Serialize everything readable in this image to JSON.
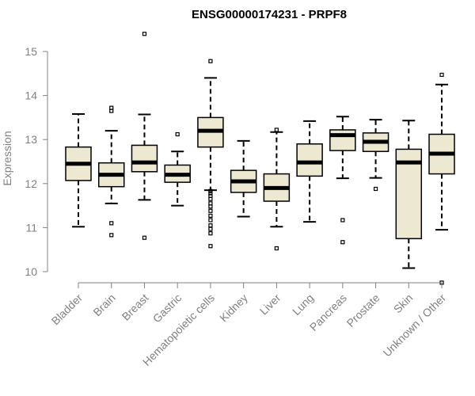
{
  "chart_data": {
    "type": "boxplot",
    "title": "ENSG00000174231 - PRPF8",
    "xlabel": "",
    "ylabel": "Expression",
    "ylim": [
      10,
      15
    ],
    "yticks": [
      10,
      11,
      12,
      13,
      14,
      15
    ],
    "grid": false,
    "box_fill": "#ede8d1",
    "categories": [
      "Bladder",
      "Brain",
      "Breast",
      "Gastric",
      "Hematopoietic cells",
      "Kidney",
      "Liver",
      "Lung",
      "Pancreas",
      "Prostate",
      "Skin",
      "Unknown / Other"
    ],
    "boxes": [
      {
        "category": "Bladder",
        "whisker_low": 11.02,
        "q1": 12.07,
        "median": 12.45,
        "q3": 12.83,
        "whisker_high": 13.58,
        "outliers": []
      },
      {
        "category": "Brain",
        "whisker_low": 11.55,
        "q1": 11.93,
        "median": 12.2,
        "q3": 12.47,
        "whisker_high": 13.2,
        "outliers": [
          13.65,
          13.72,
          11.1,
          10.83
        ]
      },
      {
        "category": "Breast",
        "whisker_low": 11.63,
        "q1": 12.27,
        "median": 12.48,
        "q3": 12.87,
        "whisker_high": 13.57,
        "outliers": [
          15.4,
          10.77
        ]
      },
      {
        "category": "Gastric",
        "whisker_low": 11.5,
        "q1": 12.03,
        "median": 12.2,
        "q3": 12.42,
        "whisker_high": 12.73,
        "outliers": [
          13.12
        ]
      },
      {
        "category": "Hematopoietic cells",
        "whisker_low": 11.85,
        "q1": 12.83,
        "median": 13.2,
        "q3": 13.5,
        "whisker_high": 14.4,
        "outliers": [
          14.78,
          11.83,
          11.78,
          11.72,
          11.65,
          11.55,
          11.48,
          11.38,
          11.27,
          11.17,
          11.05,
          10.97,
          10.87,
          10.58
        ]
      },
      {
        "category": "Kidney",
        "whisker_low": 11.25,
        "q1": 11.8,
        "median": 12.05,
        "q3": 12.3,
        "whisker_high": 12.97,
        "outliers": []
      },
      {
        "category": "Liver",
        "whisker_low": 11.02,
        "q1": 11.6,
        "median": 11.9,
        "q3": 12.22,
        "whisker_high": 13.17,
        "outliers": [
          13.22,
          10.53
        ]
      },
      {
        "category": "Lung",
        "whisker_low": 11.13,
        "q1": 12.17,
        "median": 12.48,
        "q3": 12.9,
        "whisker_high": 13.42,
        "outliers": []
      },
      {
        "category": "Pancreas",
        "whisker_low": 12.12,
        "q1": 12.75,
        "median": 13.1,
        "q3": 13.22,
        "whisker_high": 13.52,
        "outliers": [
          11.17,
          10.67
        ]
      },
      {
        "category": "Prostate",
        "whisker_low": 12.13,
        "q1": 12.73,
        "median": 12.95,
        "q3": 13.15,
        "whisker_high": 13.45,
        "outliers": [
          11.88
        ]
      },
      {
        "category": "Skin",
        "whisker_low": 10.08,
        "q1": 10.75,
        "median": 12.48,
        "q3": 12.78,
        "whisker_high": 13.43,
        "outliers": []
      },
      {
        "category": "Unknown / Other",
        "whisker_low": 10.95,
        "q1": 12.22,
        "median": 12.68,
        "q3": 13.12,
        "whisker_high": 14.25,
        "outliers": [
          14.47,
          9.75
        ]
      }
    ]
  }
}
